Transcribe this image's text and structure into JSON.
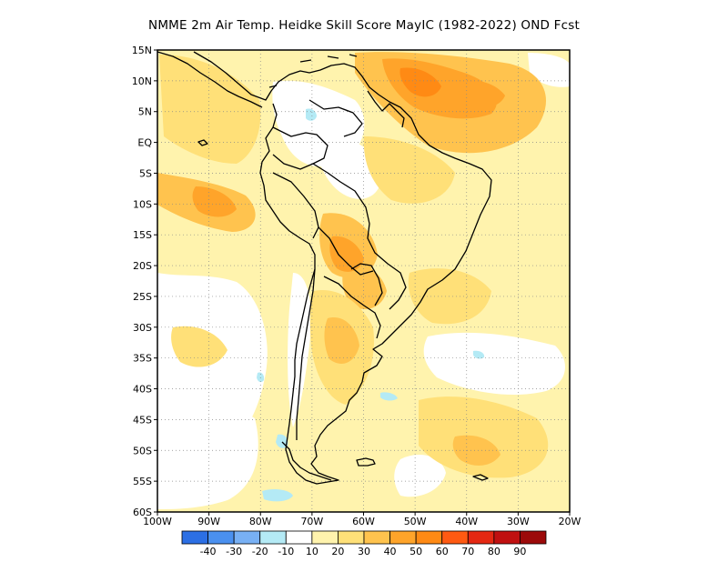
{
  "title": "NMME  2m Air Temp. Heidke Skill Score MayIC (1982-2022) OND Fcst",
  "map": {
    "lon_range": [
      -100,
      -20
    ],
    "lat_range": [
      -60,
      15
    ],
    "lat_labels": [
      "15N",
      "10N",
      "5N",
      "EQ",
      "5S",
      "10S",
      "15S",
      "20S",
      "25S",
      "30S",
      "35S",
      "40S",
      "45S",
      "50S",
      "55S",
      "60S"
    ],
    "lon_labels": [
      "100W",
      "90W",
      "80W",
      "70W",
      "60W",
      "50W",
      "40W",
      "30W",
      "20W"
    ],
    "grid": "dotted"
  },
  "legend": {
    "colors": [
      "#2c6fe4",
      "#4a90ef",
      "#78b0f4",
      "#b4eaf5",
      "#ffffff",
      "#fff3ad",
      "#ffe078",
      "#ffc34e",
      "#ffa42a",
      "#ff8a14",
      "#ff5a12",
      "#e42812",
      "#c01010",
      "#9c0a0a"
    ],
    "labels": [
      "-40",
      "-30",
      "-20",
      "-10",
      "10",
      "20",
      "30",
      "40",
      "50",
      "60",
      "70",
      "80",
      "90"
    ]
  }
}
